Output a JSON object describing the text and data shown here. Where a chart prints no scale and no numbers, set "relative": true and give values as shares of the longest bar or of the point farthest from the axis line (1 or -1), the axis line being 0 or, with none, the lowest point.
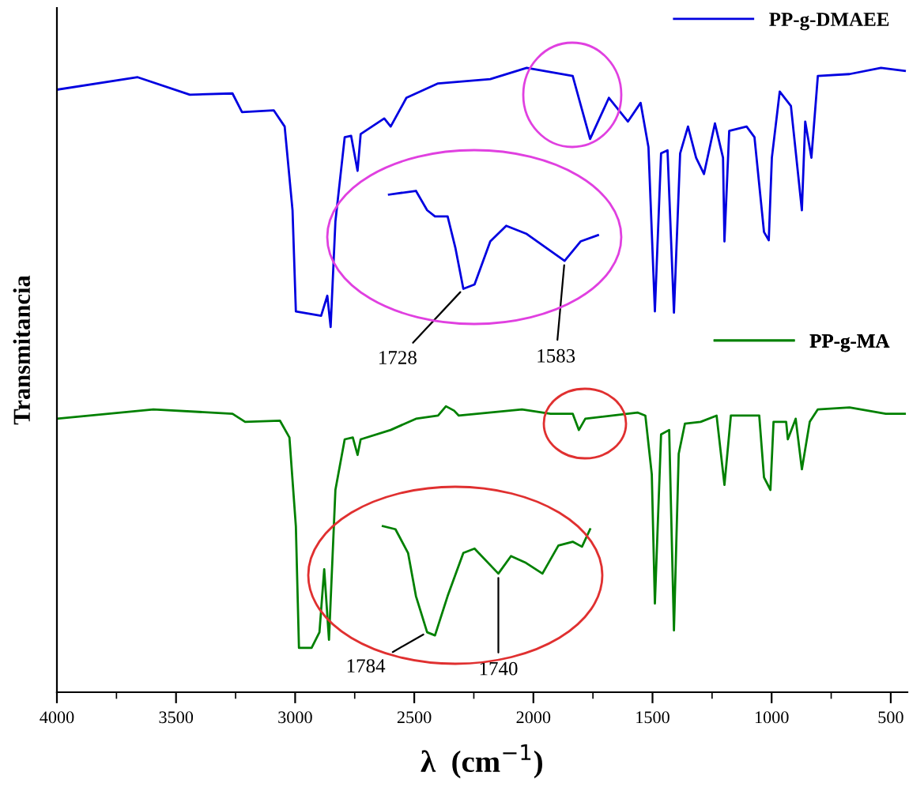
{
  "chart_data": {
    "type": "line",
    "relative": true,
    "xlabel": "λ  (cm$^{−1}$)",
    "ylabel": "Transmitancia",
    "xlim": [
      4000,
      430
    ],
    "xticks": [
      4000,
      {
        "value": 3750,
        "label": null
      },
      3500,
      {
        "value": 3250,
        "label": null
      },
      3000,
      {
        "value": 2750,
        "label": null
      },
      2500,
      {
        "value": 2250,
        "label": null
      },
      2000,
      {
        "value": 1750,
        "label": null
      },
      1500,
      {
        "value": 1250,
        "label": null
      },
      1000,
      {
        "value": 750,
        "label": null
      },
      500
    ],
    "legend": "top right",
    "line_style": "solid",
    "marker": "none",
    "grid": false,
    "tick_labels": "x",
    "series": [
      {
        "name": "PP-g-DMAEE",
        "color": "#0000e0",
        "x": [
          4000,
          3661,
          3442,
          3263,
          3223,
          3090,
          3044,
          3011,
          2997,
          2891,
          2865,
          2851,
          2831,
          2792,
          2765,
          2738,
          2725,
          2626,
          2599,
          2533,
          2400,
          2181,
          2028,
          1835,
          1762,
          1683,
          1603,
          1550,
          1517,
          1490,
          1464,
          1437,
          1410,
          1384,
          1351,
          1317,
          1284,
          1238,
          1204,
          1198,
          1178,
          1105,
          1072,
          1032,
          1012,
          999,
          966,
          919,
          873,
          859,
          833,
          806,
          673,
          541,
          441
        ],
        "values": [
          0.965,
          0.985,
          0.957,
          0.959,
          0.929,
          0.932,
          0.906,
          0.772,
          0.61,
          0.603,
          0.635,
          0.585,
          0.754,
          0.889,
          0.891,
          0.835,
          0.894,
          0.919,
          0.906,
          0.952,
          0.975,
          0.982,
          1.0,
          0.987,
          0.886,
          0.952,
          0.914,
          0.944,
          0.873,
          0.61,
          0.863,
          0.868,
          0.608,
          0.863,
          0.906,
          0.856,
          0.83,
          0.911,
          0.856,
          0.722,
          0.899,
          0.906,
          0.889,
          0.737,
          0.724,
          0.856,
          0.962,
          0.939,
          0.772,
          0.914,
          0.856,
          0.987,
          0.99,
          1.0,
          0.995
        ]
      },
      {
        "name": "PP-g-MA",
        "color": "#008000",
        "x": [
          4000,
          3595,
          3263,
          3210,
          3064,
          3024,
          2997,
          2984,
          2931,
          2898,
          2878,
          2858,
          2831,
          2792,
          2758,
          2738,
          2725,
          2599,
          2493,
          2400,
          2367,
          2333,
          2313,
          2048,
          1928,
          1835,
          1809,
          1782,
          1563,
          1530,
          1503,
          1490,
          1464,
          1430,
          1410,
          1390,
          1364,
          1298,
          1231,
          1198,
          1171,
          1052,
          1032,
          1005,
          992,
          939,
          932,
          899,
          873,
          840,
          806,
          673,
          521,
          441
        ],
        "values": [
          0.438,
          0.453,
          0.446,
          0.433,
          0.435,
          0.408,
          0.266,
          0.071,
          0.071,
          0.096,
          0.197,
          0.084,
          0.324,
          0.405,
          0.408,
          0.38,
          0.405,
          0.42,
          0.438,
          0.443,
          0.458,
          0.451,
          0.443,
          0.453,
          0.446,
          0.446,
          0.42,
          0.438,
          0.448,
          0.443,
          0.349,
          0.142,
          0.413,
          0.42,
          0.099,
          0.382,
          0.43,
          0.433,
          0.443,
          0.332,
          0.443,
          0.443,
          0.344,
          0.324,
          0.433,
          0.433,
          0.405,
          0.438,
          0.357,
          0.433,
          0.453,
          0.456,
          0.446,
          0.446
        ]
      },
      {
        "color": "#0000e0",
        "x": [
          2606,
          2493,
          2446,
          2413,
          2360,
          2327,
          2294,
          2247,
          2181,
          2114,
          2028,
          1869,
          1802,
          1729
        ],
        "values": [
          0.797,
          0.803,
          0.772,
          0.762,
          0.762,
          0.711,
          0.646,
          0.653,
          0.722,
          0.747,
          0.734,
          0.691,
          0.722,
          0.732
        ]
      },
      {
        "color": "#008000",
        "x": [
          2632,
          2579,
          2526,
          2493,
          2446,
          2413,
          2360,
          2294,
          2247,
          2147,
          2094,
          2035,
          1962,
          1895,
          1835,
          1796,
          1762
        ],
        "values": [
          0.266,
          0.261,
          0.223,
          0.154,
          0.096,
          0.091,
          0.154,
          0.223,
          0.23,
          0.19,
          0.218,
          0.208,
          0.19,
          0.235,
          0.241,
          0.233,
          0.261
        ]
      }
    ],
    "annotations": [
      {
        "text": "1728",
        "x": 2294,
        "y": 0.646
      },
      {
        "text": "1583",
        "x": 1869,
        "y": 0.691
      },
      {
        "text": "1784",
        "x": 2446,
        "y": 0.096
      },
      {
        "text": "1740",
        "x": 2147,
        "y": 0.19
      }
    ]
  }
}
